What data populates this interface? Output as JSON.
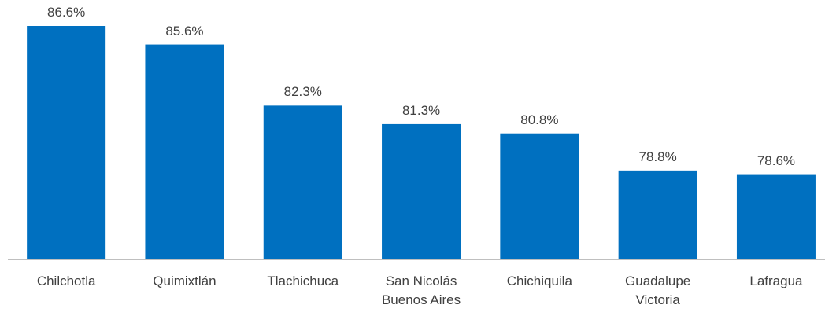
{
  "chart_data": {
    "type": "bar",
    "categories": [
      "Chilchotla",
      "Quimixtlán",
      "Tlachichuca",
      "San Nicolás Buenos Aires",
      "Chichiquila",
      "Guadalupe Victoria",
      "Lafragua"
    ],
    "values": [
      86.6,
      85.6,
      82.3,
      81.3,
      80.8,
      78.8,
      78.6
    ],
    "value_labels": [
      "86.6%",
      "85.6%",
      "82.3%",
      "81.3%",
      "80.8%",
      "78.8%",
      "78.6%"
    ],
    "color": "#0070c0",
    "ylim": [
      74,
      88
    ]
  }
}
